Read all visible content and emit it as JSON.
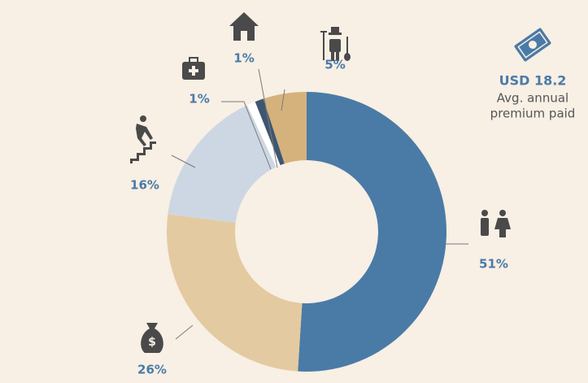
{
  "chart_data": {
    "type": "donut",
    "categories": [
      null,
      null,
      null,
      null,
      null,
      null
    ],
    "values": [
      51,
      26,
      16,
      1,
      1,
      5
    ],
    "value_labels": [
      "51%",
      "26%",
      "16%",
      "1%",
      "1%",
      "5%"
    ],
    "colors": [
      "#4a7ba6",
      "#e4caa0",
      "#cdd7e3",
      "#ffffff",
      "#3f5671",
      "#d5b27c"
    ],
    "annotation": {
      "value": "USD 18.2",
      "lines": [
        "Avg. annual",
        "premium paid"
      ]
    }
  }
}
